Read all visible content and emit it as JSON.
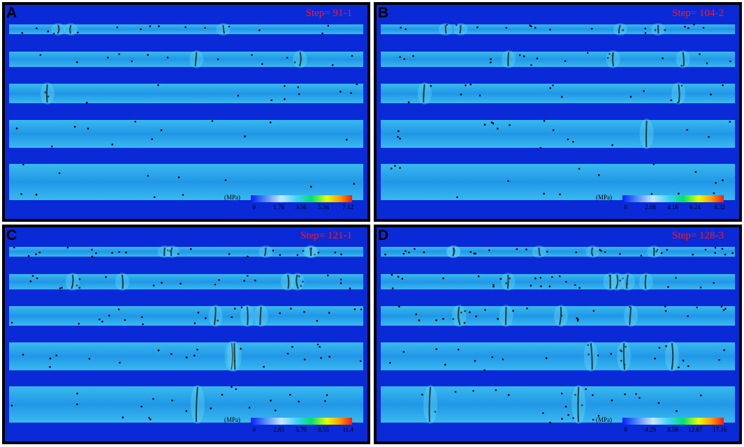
{
  "panels": [
    {
      "id": "A",
      "label": "A",
      "step": "Step= 91-1",
      "unit": "(MPa)",
      "ticks": [
        "0",
        "1.78",
        "3.56",
        "5.34",
        "7.12"
      ],
      "level": 1
    },
    {
      "id": "B",
      "label": "B",
      "step": "Step= 104-2",
      "unit": "(MPa)",
      "ticks": [
        "0",
        "2.08",
        "4.16",
        "6.24",
        "8.32"
      ],
      "level": 2
    },
    {
      "id": "C",
      "label": "C",
      "step": "Step= 121-1",
      "unit": "(MPa)",
      "ticks": [
        "0",
        "2.85",
        "5.70",
        "8.55",
        "11.4"
      ],
      "level": 3
    },
    {
      "id": "D",
      "label": "D",
      "step": "Step= 128-3",
      "unit": "(MPa)",
      "ticks": [
        "0",
        "4.29",
        "8.58",
        "12.87",
        "17.16"
      ],
      "level": 4
    }
  ],
  "colors": {
    "background": "#0a2ad8",
    "layer": "#23a3e8",
    "layer_hi": "#3ec9f2",
    "crack": "#000000",
    "step_text": "#ff1a1a",
    "border": "#000000"
  }
}
